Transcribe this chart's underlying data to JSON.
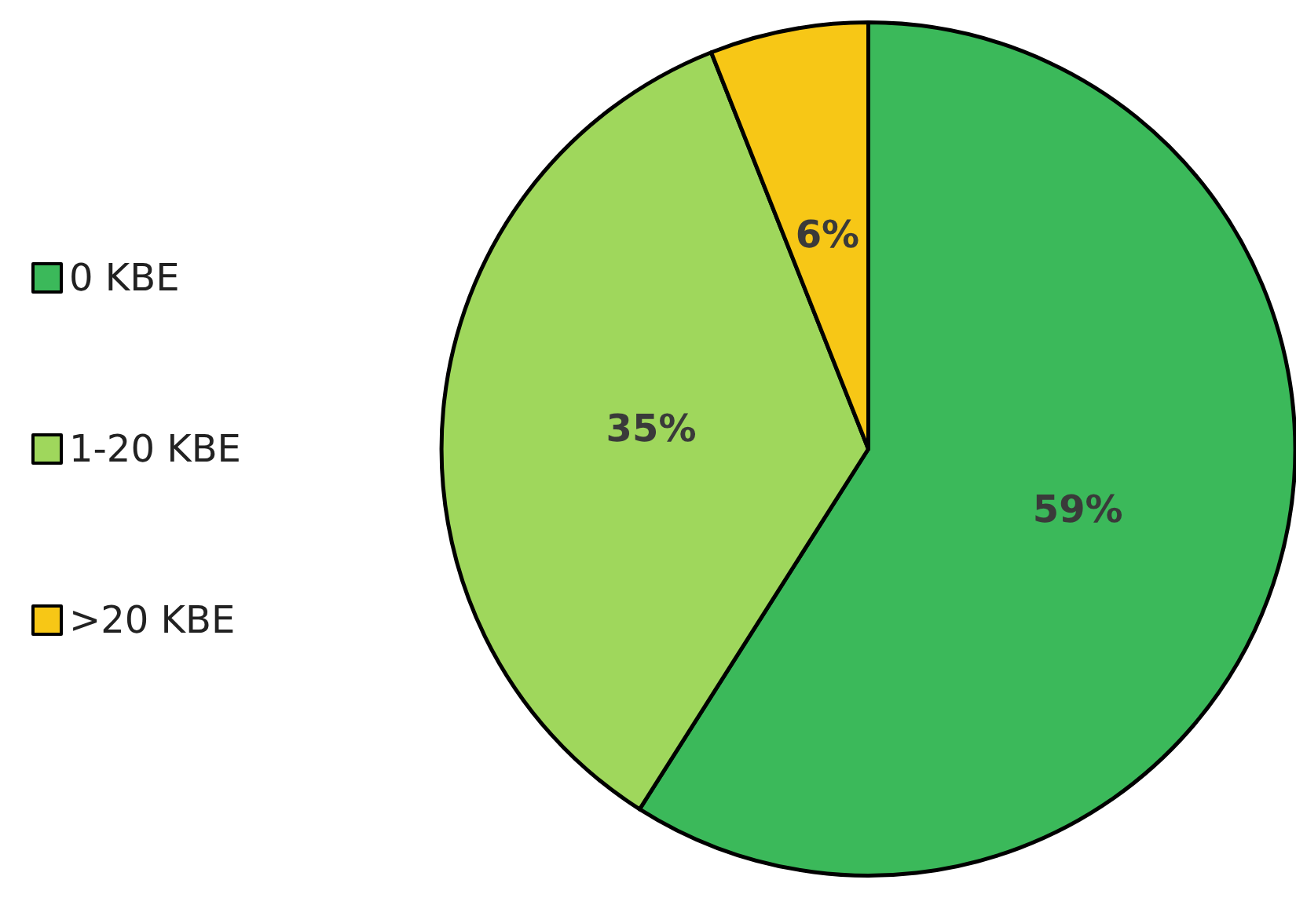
{
  "chart_data": {
    "type": "pie",
    "categories": [
      "0 KBE",
      "1-20 KBE",
      ">20 KBE"
    ],
    "values": [
      59,
      35,
      6
    ],
    "colors": [
      "#3bb95a",
      "#9fd75c",
      "#f7c716"
    ],
    "value_labels": [
      "59%",
      "35%",
      "6%"
    ],
    "legend": "left"
  }
}
